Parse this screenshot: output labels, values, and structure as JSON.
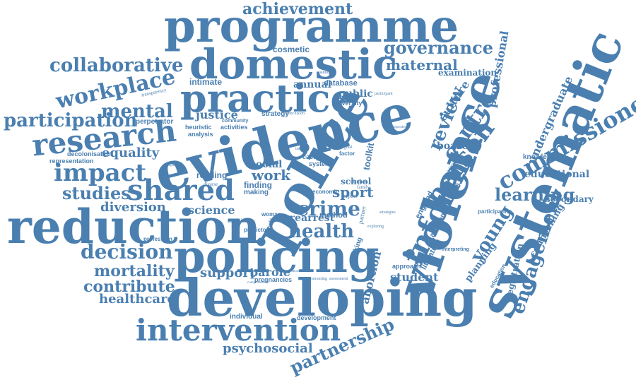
{
  "color": "#4a7fb0",
  "words": {
    "achievement": "achievement",
    "programme": "programme",
    "domestic": "domestic",
    "collaborative": "collaborative",
    "cosmetic": "cosmetic",
    "governance": "governance",
    "maternal": "maternal",
    "systematic": "systematic",
    "workplace": "workplace",
    "intimate": "intimate",
    "annual": "annual",
    "database": "database",
    "practice": "practice",
    "professional": "professional",
    "examination": "examination",
    "review": "review",
    "commissioned": "commissioned",
    "mental": "mental",
    "public": "public",
    "university": "university",
    "culture": "culture",
    "centre": "centre",
    "undergraduate": "undergraduate",
    "participation": "participation",
    "justice": "justice",
    "strategy": "strategy",
    "perpetrator": "perpetrator",
    "evidence": "evidence",
    "research": "research",
    "heuristic": "heuristic",
    "analysis": "analysis",
    "person": "person",
    "police": "police",
    "equality": "equality",
    "decolonisation": "decolonisation",
    "representation": "representation",
    "board": "board",
    "knowledge": "knowledge",
    "impact": "impact",
    "social": "social",
    "inform": "inform",
    "educational": "educational",
    "work": "work",
    "school": "school",
    "shared": "shared",
    "studies": "studies",
    "reading": "reading",
    "finding": "finding",
    "sport": "sport",
    "learning": "learning",
    "violence": "violence",
    "toolkit": "toolkit",
    "diversion": "diversion",
    "making": "making",
    "secondary": "secondary",
    "crime": "crime",
    "science": "science",
    "reduction": "reduction",
    "prearrest": "prearrest",
    "young": "young",
    "health": "health",
    "engagement": "engagement",
    "counselling": "counselling",
    "decision": "decision",
    "policing": "policing",
    "mortality": "mortality",
    "support": "support",
    "parole": "parole",
    "contribute": "contribute",
    "student": "student",
    "abortion": "abortion",
    "healthcare": "healthcare",
    "developing": "developing",
    "planning": "planning",
    "registration": "registration",
    "intervention": "intervention",
    "individual": "individual",
    "development": "development",
    "partnership": "partnership",
    "psychosocial": "psychosocial",
    "approach": "approach",
    "literature": "literature",
    "academic": "academic",
    "england": "england",
    "synthesis": "synthesis",
    "participating": "participating",
    "pregnancies": "pregnancies",
    "thinking": "thinking",
    "woman": "woman",
    "predictor": "predictor",
    "technical": "technical",
    "profession": "profession",
    "system": "system",
    "case": "case",
    "method": "method",
    "economic": "economic",
    "factor": "factor",
    "kind": "kind",
    "service": "service",
    "activities": "activities",
    "community": "community",
    "transparency": "transparency",
    "quantitative": "quantitative",
    "participant": "participant",
    "conclusion": "conclusion",
    "diverse": "diverse",
    "partner": "partner",
    "report": "report",
    "member": "member",
    "family": "family",
    "original": "original",
    "interpreting": "interpreting",
    "education": "education",
    "scheduling": "scheduling",
    "exploring": "exploring",
    "strategies": "strategies",
    "collaboration": "collaboration",
    "comprehensive": "comprehensive",
    "warranting": "warranting",
    "assessment": "assessment",
    "benefit": "benefit",
    "issue": "issue",
    "independent": "independent",
    "implication": "implication"
  }
}
